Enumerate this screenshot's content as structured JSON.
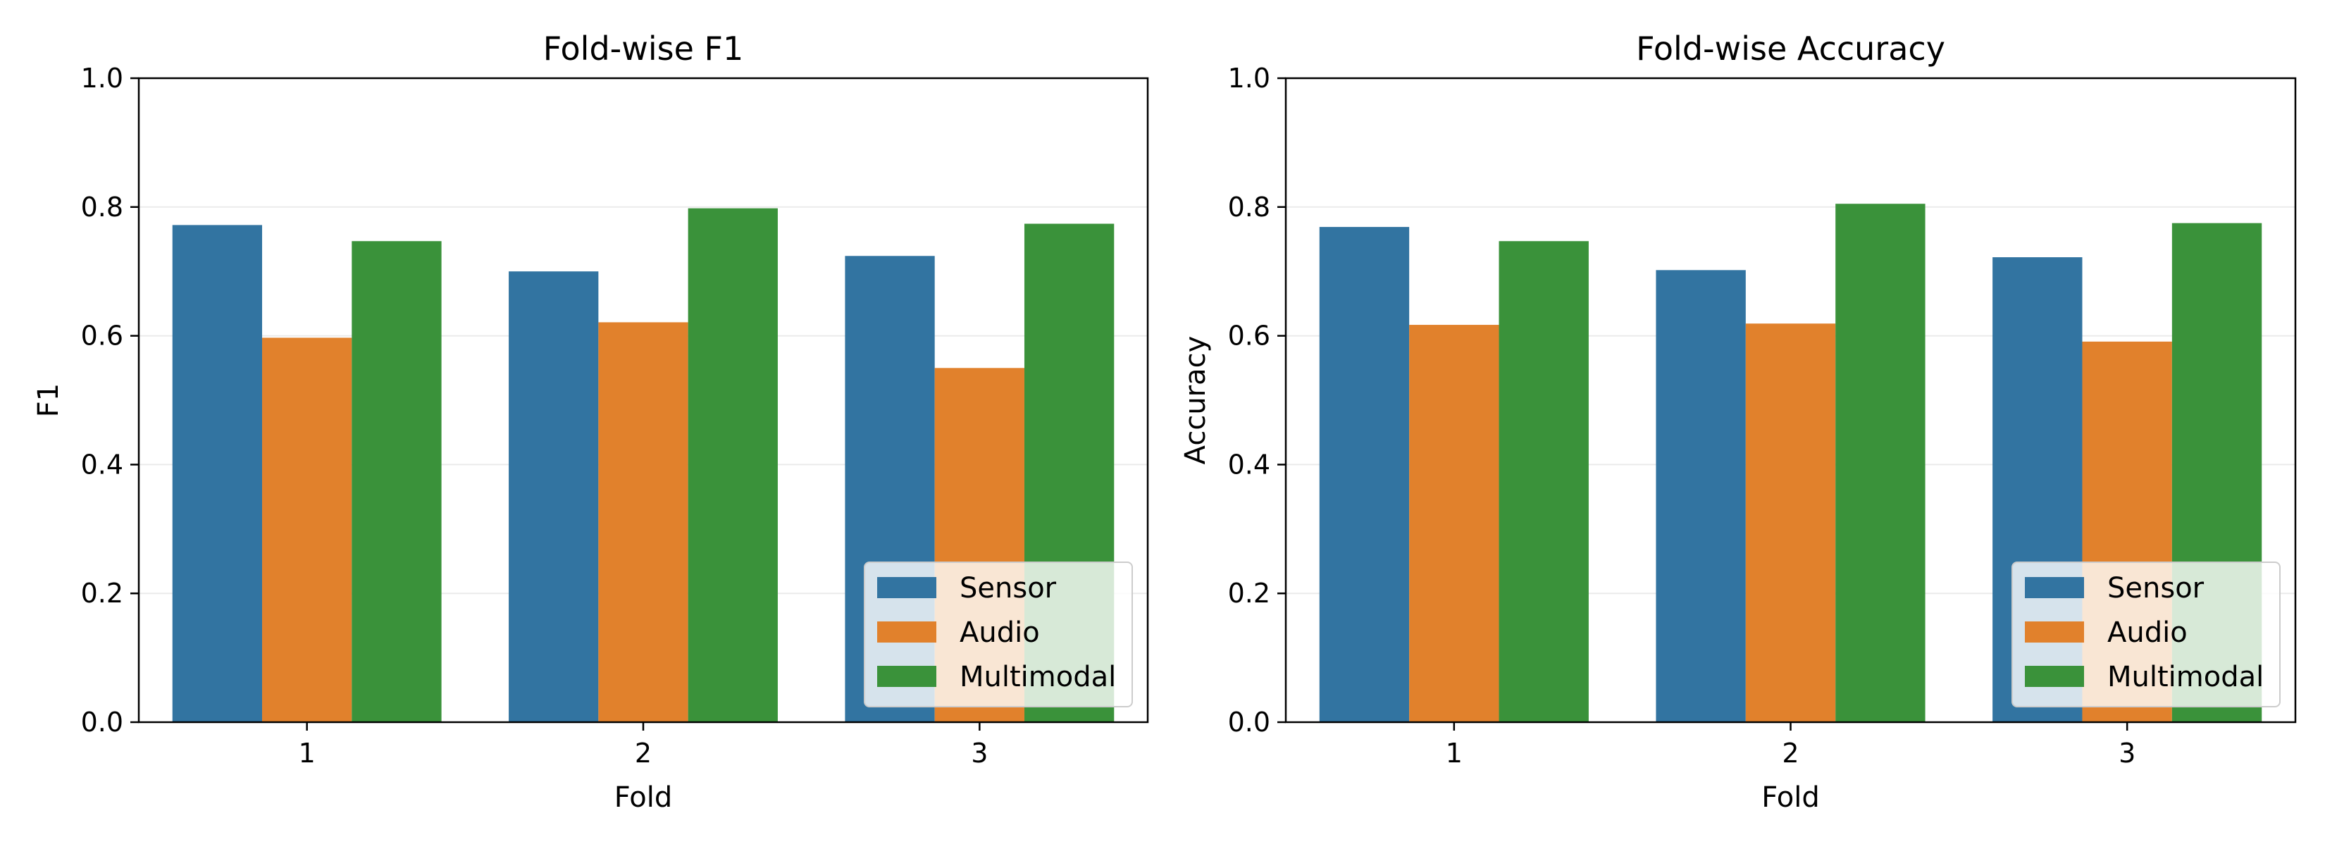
{
  "chart_data": [
    {
      "type": "bar",
      "title": "Fold-wise F1",
      "xlabel": "Fold",
      "ylabel": "F1",
      "categories": [
        "1",
        "2",
        "3"
      ],
      "ylim": [
        0,
        1.0
      ],
      "yticks": [
        "0.0",
        "0.2",
        "0.4",
        "0.6",
        "0.8",
        "1.0"
      ],
      "grid": "horizontal",
      "legend_position": "lower-right",
      "series": [
        {
          "name": "Sensor",
          "color": "#3274a1",
          "values": [
            0.772,
            0.7,
            0.724
          ]
        },
        {
          "name": "Audio",
          "color": "#e1812c",
          "values": [
            0.597,
            0.621,
            0.55
          ]
        },
        {
          "name": "Multimodal",
          "color": "#3a923a",
          "values": [
            0.747,
            0.798,
            0.774
          ]
        }
      ]
    },
    {
      "type": "bar",
      "title": "Fold-wise Accuracy",
      "xlabel": "Fold",
      "ylabel": "Accuracy",
      "categories": [
        "1",
        "2",
        "3"
      ],
      "ylim": [
        0,
        1.0
      ],
      "yticks": [
        "0.0",
        "0.2",
        "0.4",
        "0.6",
        "0.8",
        "1.0"
      ],
      "grid": "horizontal",
      "legend_position": "lower-right",
      "series": [
        {
          "name": "Sensor",
          "color": "#3274a1",
          "values": [
            0.769,
            0.702,
            0.722
          ]
        },
        {
          "name": "Audio",
          "color": "#e1812c",
          "values": [
            0.617,
            0.619,
            0.591
          ]
        },
        {
          "name": "Multimodal",
          "color": "#3a923a",
          "values": [
            0.747,
            0.805,
            0.775
          ]
        }
      ]
    }
  ]
}
